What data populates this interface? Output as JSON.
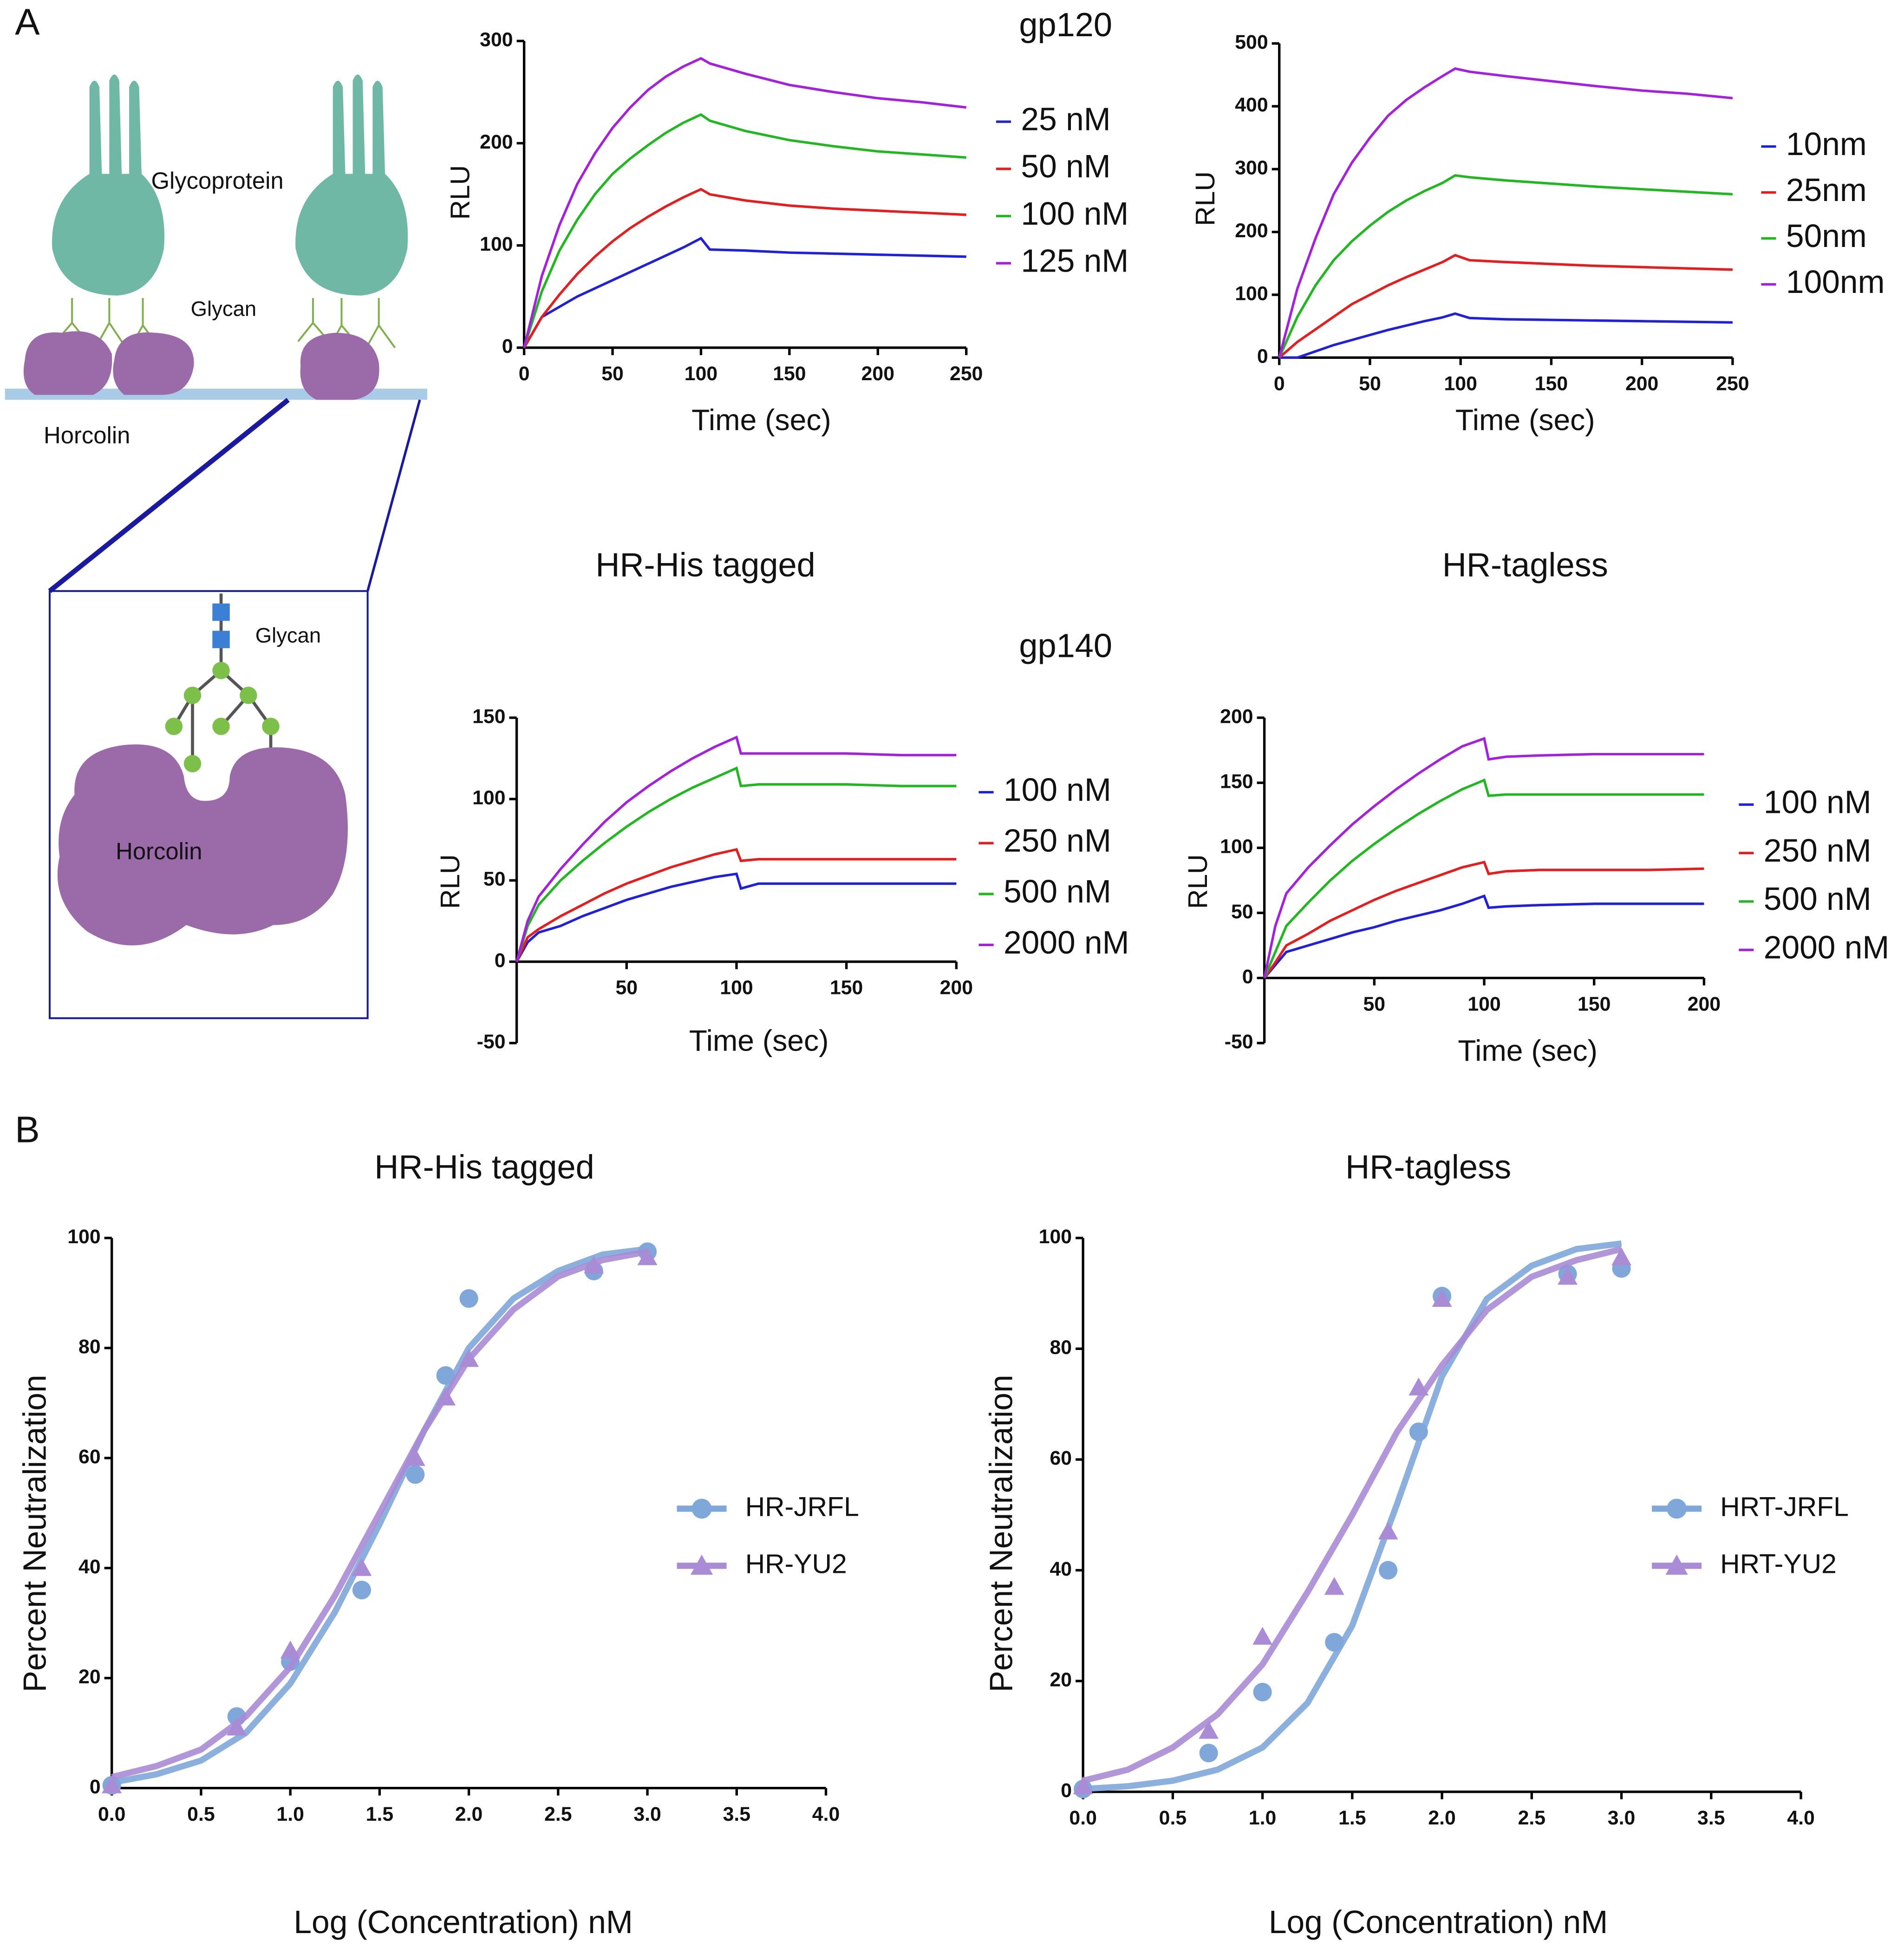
{
  "panel_labels": [
    "A",
    "B"
  ],
  "diagram": {
    "labels": [
      "Glycoprotein",
      "Glycan",
      "Horcolin",
      "Glycan",
      "Horcolin"
    ]
  },
  "column_labels": [
    "HR-His tagged",
    "HR-tagless"
  ],
  "chart_data": [
    {
      "type": "line",
      "title": "gp120",
      "x_label": "Time (sec)",
      "y_label": "RLU",
      "xlim": [
        0,
        250
      ],
      "xticks": [
        0,
        50,
        100,
        150,
        200,
        250
      ],
      "ylim": [
        0,
        300
      ],
      "yticks": [
        0,
        100,
        200,
        300
      ],
      "x": [
        0,
        10,
        20,
        30,
        40,
        50,
        60,
        70,
        80,
        90,
        100,
        105,
        125,
        150,
        175,
        200,
        225,
        250
      ],
      "series": [
        {
          "name": "25 nM",
          "color": "#1f1fe0",
          "values": [
            0,
            30,
            40,
            50,
            58,
            66,
            74,
            82,
            90,
            98,
            107,
            96,
            95,
            93,
            92,
            91,
            90,
            89
          ]
        },
        {
          "name": "50 nM",
          "color": "#e81c1c",
          "values": [
            0,
            30,
            52,
            72,
            89,
            104,
            117,
            128,
            138,
            147,
            155,
            150,
            144,
            139,
            136,
            134,
            132,
            130
          ]
        },
        {
          "name": "100 nM",
          "color": "#1fb81f",
          "values": [
            0,
            55,
            95,
            125,
            150,
            170,
            185,
            198,
            210,
            220,
            228,
            222,
            212,
            203,
            197,
            192,
            189,
            186
          ]
        },
        {
          "name": "125 nM",
          "color": "#a41fe0",
          "values": [
            0,
            70,
            120,
            160,
            190,
            215,
            235,
            252,
            265,
            275,
            283,
            278,
            268,
            257,
            250,
            244,
            240,
            235
          ]
        }
      ]
    },
    {
      "type": "line",
      "x_label": "Time (sec)",
      "y_label": "RLU",
      "xlim": [
        0,
        250
      ],
      "xticks": [
        0,
        50,
        100,
        150,
        200,
        250
      ],
      "ylim": [
        0,
        500
      ],
      "yticks": [
        0,
        100,
        200,
        300,
        400,
        500
      ],
      "x": [
        0,
        10,
        20,
        30,
        40,
        50,
        60,
        70,
        80,
        90,
        97,
        105,
        125,
        150,
        175,
        200,
        225,
        250
      ],
      "series": [
        {
          "name": "10nm",
          "color": "#1f1fe0",
          "values": [
            0,
            0,
            10,
            20,
            28,
            36,
            44,
            51,
            58,
            64,
            70,
            63,
            61,
            60,
            59,
            58,
            57,
            56
          ]
        },
        {
          "name": "25nm",
          "color": "#e81c1c",
          "values": [
            0,
            25,
            45,
            65,
            85,
            100,
            115,
            128,
            140,
            152,
            163,
            155,
            152,
            149,
            146,
            144,
            142,
            140
          ]
        },
        {
          "name": "50nm",
          "color": "#1fb81f",
          "values": [
            0,
            65,
            115,
            155,
            185,
            210,
            232,
            250,
            265,
            278,
            290,
            287,
            282,
            277,
            272,
            268,
            264,
            260
          ]
        },
        {
          "name": "100nm",
          "color": "#a41fe0",
          "values": [
            0,
            110,
            190,
            260,
            310,
            350,
            385,
            410,
            430,
            448,
            460,
            455,
            448,
            440,
            432,
            425,
            420,
            413
          ]
        }
      ]
    },
    {
      "type": "line",
      "title": "gp140",
      "x_label": "Time (sec)",
      "y_label": "RLU",
      "xlim": [
        0,
        200
      ],
      "xticks": [
        50,
        100,
        150,
        200
      ],
      "ylim": [
        -50,
        150
      ],
      "yticks": [
        -50,
        0,
        50,
        100,
        150
      ],
      "x": [
        0,
        5,
        10,
        20,
        30,
        40,
        50,
        60,
        70,
        80,
        90,
        100,
        102,
        110,
        125,
        150,
        175,
        200
      ],
      "series": [
        {
          "name": "100 nM",
          "color": "#1f1fe0",
          "values": [
            0,
            12,
            18,
            22,
            28,
            33,
            38,
            42,
            46,
            49,
            52,
            54,
            45,
            48,
            48,
            48,
            48,
            48
          ]
        },
        {
          "name": "250 nM",
          "color": "#e81c1c",
          "values": [
            0,
            15,
            20,
            28,
            35,
            42,
            48,
            53,
            58,
            62,
            66,
            69,
            62,
            63,
            63,
            63,
            63,
            63
          ]
        },
        {
          "name": "500 nM",
          "color": "#1fb81f",
          "values": [
            0,
            22,
            35,
            50,
            62,
            73,
            83,
            92,
            100,
            107,
            113,
            119,
            108,
            109,
            109,
            109,
            108,
            108
          ]
        },
        {
          "name": "2000 nM",
          "color": "#a41fe0",
          "values": [
            0,
            25,
            40,
            57,
            72,
            86,
            98,
            108,
            117,
            125,
            132,
            138,
            128,
            128,
            128,
            128,
            127,
            127
          ]
        }
      ]
    },
    {
      "type": "line",
      "x_label": "Time (sec)",
      "y_label": "RLU",
      "xlim": [
        0,
        200
      ],
      "xticks": [
        50,
        100,
        150,
        200
      ],
      "ylim": [
        -50,
        200
      ],
      "yticks": [
        -50,
        0,
        50,
        100,
        150,
        200
      ],
      "x": [
        0,
        5,
        10,
        20,
        30,
        40,
        50,
        60,
        70,
        80,
        90,
        100,
        102,
        110,
        125,
        150,
        175,
        200
      ],
      "series": [
        {
          "name": "100 nM",
          "color": "#1f1fe0",
          "values": [
            0,
            10,
            20,
            25,
            30,
            35,
            39,
            44,
            48,
            52,
            57,
            63,
            54,
            55,
            56,
            57,
            57,
            57
          ]
        },
        {
          "name": "250 nM",
          "color": "#e81c1c",
          "values": [
            0,
            12,
            25,
            34,
            44,
            52,
            60,
            67,
            73,
            79,
            85,
            89,
            80,
            82,
            83,
            83,
            83,
            84
          ]
        },
        {
          "name": "500 nM",
          "color": "#1fb81f",
          "values": [
            0,
            20,
            40,
            58,
            75,
            90,
            103,
            115,
            126,
            136,
            145,
            152,
            140,
            141,
            141,
            141,
            141,
            141
          ]
        },
        {
          "name": "2000 nM",
          "color": "#a41fe0",
          "values": [
            0,
            40,
            65,
            85,
            102,
            118,
            132,
            145,
            157,
            168,
            178,
            184,
            168,
            170,
            171,
            172,
            172,
            172
          ]
        }
      ]
    },
    {
      "type": "scatter",
      "title": "HR-His tagged",
      "x_label": "Log (Concentration) nM",
      "y_label": "Percent Neutralization",
      "xlim": [
        0,
        4
      ],
      "xticks": [
        {
          "value": 0,
          "label": "0.0"
        },
        {
          "value": 0.5,
          "label": "0.5"
        },
        {
          "value": 1,
          "label": "1.0"
        },
        {
          "value": 1.5,
          "label": "1.5"
        },
        {
          "value": 2,
          "label": "2.0"
        },
        {
          "value": 2.5,
          "label": "2.5"
        },
        {
          "value": 3,
          "label": "3.0"
        },
        {
          "value": 3.5,
          "label": "3.5"
        },
        {
          "value": 4,
          "label": "4.0"
        }
      ],
      "ylim": [
        0,
        100
      ],
      "yticks": [
        0,
        20,
        40,
        60,
        80,
        100
      ],
      "x": [
        0,
        0.7,
        1.0,
        1.4,
        1.7,
        1.87,
        2.0,
        2.7,
        3.0
      ],
      "fit_x": [
        0,
        0.25,
        0.5,
        0.75,
        1,
        1.25,
        1.5,
        1.75,
        2,
        2.25,
        2.5,
        2.75,
        3
      ],
      "series": [
        {
          "name": "HR-JRFL",
          "color": "#7fa7d9",
          "marker": "circle",
          "values": [
            0.5,
            13,
            23,
            36,
            57,
            75,
            89,
            94,
            97.5
          ],
          "fit_values": [
            1,
            2.5,
            5,
            10,
            19,
            32,
            48,
            65,
            80,
            89,
            94,
            97,
            98
          ]
        },
        {
          "name": "HR-YU2",
          "color": "#a98bd6",
          "marker": "triangle",
          "values": [
            0.5,
            11,
            25,
            40,
            60,
            71,
            78,
            95,
            96.5
          ],
          "fit_values": [
            2,
            4,
            7,
            13,
            22,
            35,
            50,
            65,
            78,
            87,
            93,
            96,
            97.5
          ]
        }
      ]
    },
    {
      "type": "scatter",
      "title": "HR-tagless",
      "x_label": "Log (Concentration) nM",
      "y_label": "Percent Neutralization",
      "xlim": [
        0,
        4
      ],
      "xticks": [
        {
          "value": 0,
          "label": "0.0"
        },
        {
          "value": 0.5,
          "label": "0.5"
        },
        {
          "value": 1,
          "label": "1.0"
        },
        {
          "value": 1.5,
          "label": "1.5"
        },
        {
          "value": 2,
          "label": "2.0"
        },
        {
          "value": 2.5,
          "label": "2.5"
        },
        {
          "value": 3,
          "label": "3.0"
        },
        {
          "value": 3.5,
          "label": "3.5"
        },
        {
          "value": 4,
          "label": "4.0"
        }
      ],
      "ylim": [
        0,
        100
      ],
      "yticks": [
        0,
        20,
        40,
        60,
        80,
        100
      ],
      "x": [
        0,
        0.7,
        1.0,
        1.4,
        1.7,
        1.87,
        2.0,
        2.7,
        3.0
      ],
      "fit_x": [
        0,
        0.25,
        0.5,
        0.75,
        1,
        1.25,
        1.5,
        1.75,
        2,
        2.25,
        2.5,
        2.75,
        3
      ],
      "series": [
        {
          "name": "HRT-JRFL",
          "color": "#7fa7d9",
          "marker": "circle",
          "values": [
            0.5,
            7,
            18,
            27,
            40,
            65,
            89.5,
            93.5,
            94.5
          ],
          "fit_values": [
            0.5,
            1,
            2,
            4,
            8,
            16,
            30,
            52,
            75,
            89,
            95,
            98,
            99
          ]
        },
        {
          "name": "HRT-YU2",
          "color": "#a98bd6",
          "marker": "triangle",
          "values": [
            1,
            11,
            28,
            37,
            47,
            73,
            89,
            93,
            96.5
          ],
          "fit_values": [
            2,
            4,
            8,
            14,
            23,
            36,
            50,
            65,
            77,
            87,
            93,
            96,
            98
          ]
        }
      ]
    }
  ]
}
